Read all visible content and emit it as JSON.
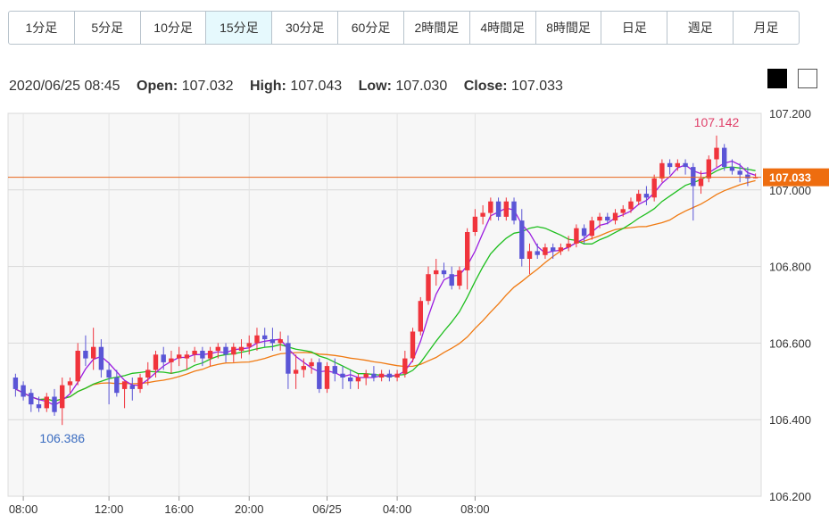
{
  "timeframe_tabs": [
    {
      "label": "1分足"
    },
    {
      "label": "5分足"
    },
    {
      "label": "10分足"
    },
    {
      "label": "15分足",
      "active": true
    },
    {
      "label": "30分足"
    },
    {
      "label": "60分足"
    },
    {
      "label": "2時間足"
    },
    {
      "label": "4時間足"
    },
    {
      "label": "8時間足"
    },
    {
      "label": "日足"
    },
    {
      "label": "週足"
    },
    {
      "label": "月足"
    }
  ],
  "ohlc": {
    "datetime": "2020/06/25 08:45",
    "open_label": "Open:",
    "open": "107.032",
    "high_label": "High:",
    "high": "107.043",
    "low_label": "Low:",
    "low": "107.030",
    "close_label": "Close:",
    "close": "107.033"
  },
  "theme_toggle": {
    "dark": "#000000",
    "light": "#ffffff"
  },
  "chart_data": {
    "type": "candlestick",
    "ylim": [
      106.2,
      107.2
    ],
    "y_ticks": [
      "106.200",
      "106.400",
      "106.600",
      "106.800",
      "107.000",
      "107.200"
    ],
    "x_ticks": [
      "08:00",
      "12:00",
      "16:00",
      "20:00",
      "06/25",
      "04:00",
      "08:00"
    ],
    "last_price": "107.033",
    "high_annotation": "107.142",
    "low_annotation": "106.386",
    "grid": true,
    "colors": {
      "up": "#f0343c",
      "down": "#5a55d6",
      "ma_short": "#9b1ce0",
      "ma_mid": "#1fbf1f",
      "ma_long": "#f07a12",
      "price_line": "#e8661a",
      "high_text": "#e0406a",
      "low_text": "#3a6cc0"
    },
    "candles": [
      [
        106.51,
        106.52,
        106.46,
        106.48
      ],
      [
        106.49,
        106.5,
        106.45,
        106.46
      ],
      [
        106.47,
        106.48,
        106.42,
        106.44
      ],
      [
        106.44,
        106.46,
        106.42,
        106.43
      ],
      [
        106.43,
        106.47,
        106.42,
        106.46
      ],
      [
        106.46,
        106.48,
        106.41,
        106.42
      ],
      [
        106.43,
        106.51,
        106.386,
        106.49
      ],
      [
        106.49,
        106.51,
        106.47,
        106.5
      ],
      [
        106.5,
        106.6,
        106.49,
        106.58
      ],
      [
        106.58,
        106.62,
        106.54,
        106.56
      ],
      [
        106.56,
        106.64,
        106.53,
        106.59
      ],
      [
        106.59,
        106.61,
        106.51,
        106.53
      ],
      [
        106.53,
        106.55,
        106.44,
        106.51
      ],
      [
        106.51,
        106.53,
        106.46,
        106.47
      ],
      [
        106.48,
        106.5,
        106.43,
        106.5
      ],
      [
        106.49,
        106.51,
        106.45,
        106.48
      ],
      [
        106.48,
        106.52,
        106.47,
        106.51
      ],
      [
        106.51,
        106.55,
        106.49,
        106.53
      ],
      [
        106.53,
        106.58,
        106.51,
        106.57
      ],
      [
        106.57,
        106.59,
        106.53,
        106.55
      ],
      [
        106.55,
        106.58,
        106.52,
        106.56
      ],
      [
        106.56,
        106.59,
        106.54,
        106.57
      ],
      [
        106.56,
        106.58,
        106.53,
        106.57
      ],
      [
        106.57,
        106.59,
        106.55,
        106.58
      ],
      [
        106.58,
        106.59,
        106.54,
        106.56
      ],
      [
        106.56,
        106.59,
        106.54,
        106.58
      ],
      [
        106.58,
        106.6,
        106.56,
        106.59
      ],
      [
        106.59,
        106.6,
        106.55,
        106.57
      ],
      [
        106.57,
        106.6,
        106.55,
        106.59
      ],
      [
        106.58,
        106.61,
        106.56,
        106.59
      ],
      [
        106.59,
        106.62,
        106.57,
        106.6
      ],
      [
        106.6,
        106.64,
        106.58,
        106.62
      ],
      [
        106.62,
        106.64,
        106.59,
        106.61
      ],
      [
        106.61,
        106.64,
        106.58,
        106.6
      ],
      [
        106.6,
        106.63,
        106.58,
        106.61
      ],
      [
        106.6,
        106.62,
        106.48,
        106.52
      ],
      [
        106.52,
        106.57,
        106.48,
        106.53
      ],
      [
        106.53,
        106.56,
        106.51,
        106.54
      ],
      [
        106.54,
        106.56,
        106.52,
        106.55
      ],
      [
        106.55,
        106.56,
        106.47,
        106.48
      ],
      [
        106.48,
        106.55,
        106.47,
        106.54
      ],
      [
        106.54,
        106.56,
        106.5,
        106.52
      ],
      [
        106.52,
        106.54,
        106.48,
        106.51
      ],
      [
        106.51,
        106.53,
        106.48,
        106.5
      ],
      [
        106.5,
        106.52,
        106.48,
        106.51
      ],
      [
        106.51,
        106.53,
        106.49,
        106.52
      ],
      [
        106.52,
        106.54,
        106.5,
        106.51
      ],
      [
        106.51,
        106.53,
        106.5,
        106.52
      ],
      [
        106.52,
        106.53,
        106.5,
        106.51
      ],
      [
        106.51,
        106.53,
        106.5,
        106.52
      ],
      [
        106.52,
        106.58,
        106.51,
        106.56
      ],
      [
        106.56,
        106.64,
        106.55,
        106.63
      ],
      [
        106.63,
        106.72,
        106.62,
        106.71
      ],
      [
        106.71,
        106.8,
        106.7,
        106.78
      ],
      [
        106.78,
        106.82,
        106.75,
        106.79
      ],
      [
        106.79,
        106.81,
        106.77,
        106.78
      ],
      [
        106.78,
        106.8,
        106.74,
        106.75
      ],
      [
        106.75,
        106.8,
        106.74,
        106.79
      ],
      [
        106.79,
        106.9,
        106.74,
        106.89
      ],
      [
        106.89,
        106.95,
        106.88,
        106.93
      ],
      [
        106.93,
        106.96,
        106.91,
        106.94
      ],
      [
        106.94,
        106.98,
        106.92,
        106.97
      ],
      [
        106.97,
        106.98,
        106.92,
        106.93
      ],
      [
        106.93,
        106.98,
        106.92,
        106.97
      ],
      [
        106.97,
        106.98,
        106.91,
        106.92
      ],
      [
        106.92,
        106.95,
        106.8,
        106.82
      ],
      [
        106.82,
        106.86,
        106.78,
        106.84
      ],
      [
        106.84,
        106.86,
        106.82,
        106.83
      ],
      [
        106.83,
        106.86,
        106.82,
        106.85
      ],
      [
        106.85,
        106.86,
        106.82,
        106.84
      ],
      [
        106.84,
        106.86,
        106.83,
        106.85
      ],
      [
        106.85,
        106.88,
        106.84,
        106.86
      ],
      [
        106.86,
        106.91,
        106.85,
        106.9
      ],
      [
        106.9,
        106.91,
        106.86,
        106.88
      ],
      [
        106.88,
        106.93,
        106.87,
        106.92
      ],
      [
        106.92,
        106.94,
        106.9,
        106.93
      ],
      [
        106.93,
        106.94,
        106.91,
        106.92
      ],
      [
        106.92,
        106.95,
        106.91,
        106.94
      ],
      [
        106.94,
        106.96,
        106.93,
        106.95
      ],
      [
        106.95,
        106.98,
        106.94,
        106.97
      ],
      [
        106.97,
        107.0,
        106.96,
        106.99
      ],
      [
        106.99,
        107.01,
        106.96,
        106.98
      ],
      [
        106.98,
        107.04,
        106.97,
        107.03
      ],
      [
        107.03,
        107.08,
        107.02,
        107.07
      ],
      [
        107.07,
        107.08,
        107.04,
        107.06
      ],
      [
        107.06,
        107.08,
        107.05,
        107.07
      ],
      [
        107.07,
        107.08,
        107.04,
        107.06
      ],
      [
        107.06,
        107.07,
        106.92,
        107.01
      ],
      [
        107.01,
        107.05,
        106.99,
        107.03
      ],
      [
        107.03,
        107.09,
        107.02,
        107.08
      ],
      [
        107.08,
        107.142,
        107.06,
        107.11
      ],
      [
        107.11,
        107.12,
        107.05,
        107.06
      ],
      [
        107.06,
        107.08,
        107.04,
        107.05
      ],
      [
        107.05,
        107.07,
        107.02,
        107.04
      ],
      [
        107.04,
        107.06,
        107.01,
        107.03
      ],
      [
        107.032,
        107.043,
        107.03,
        107.033
      ]
    ]
  }
}
